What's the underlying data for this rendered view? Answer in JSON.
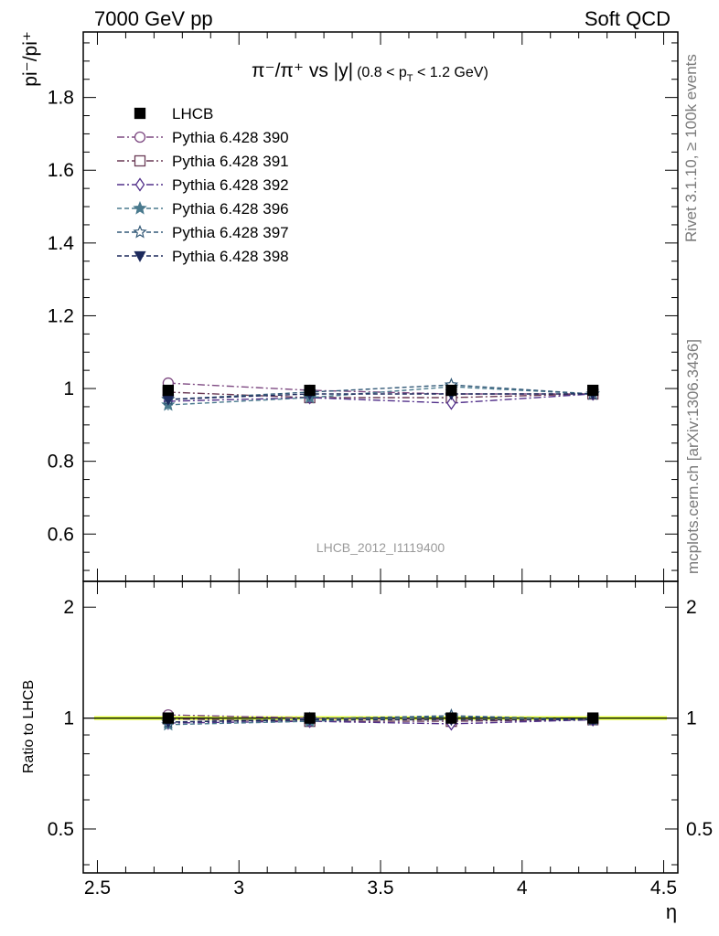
{
  "header": {
    "left": "7000 GeV pp",
    "right": "Soft QCD"
  },
  "side_labels": {
    "rivet": "Rivet 3.1.10, ≥ 100k events",
    "mcplots": "mcplots.cern.ch [arXiv:1306.3436]"
  },
  "watermark": "LHCB_2012_I1119400",
  "title": {
    "main": "π⁻/π⁺ vs |y|",
    "sub": "(0.8 < p",
    "sub_index": "T",
    "sub_end": " < 1.2 GeV)"
  },
  "ylabel_main": "pi⁻/pi⁺",
  "ylabel_ratio": "Ratio to LHCB",
  "xlabel": "η",
  "chart_data": {
    "type": "scatter",
    "x": [
      2.75,
      3.25,
      3.75,
      4.25
    ],
    "xlim": [
      2.45,
      4.55
    ],
    "ylim_main": [
      0.47,
      1.98
    ],
    "ylim_ratio": [
      0.38,
      2.35
    ],
    "ratio_log_scale": true,
    "x_ticks": [
      2.5,
      3,
      3.5,
      4,
      4.5
    ],
    "x_tick_labels": [
      "2.5",
      "3",
      "3.5",
      "4",
      "4.5"
    ],
    "y_ticks_main": [
      0.6,
      0.8,
      1,
      1.2,
      1.4,
      1.6,
      1.8
    ],
    "y_tick_labels_main": [
      "0.6",
      "0.8",
      "1",
      "1.2",
      "1.4",
      "1.6",
      "1.8"
    ],
    "y_ticks_ratio": [
      0.5,
      1,
      2
    ],
    "y_tick_labels_ratio": [
      "0.5",
      "1",
      "2"
    ],
    "legend_position": "top-left",
    "series": [
      {
        "name": "LHCB",
        "marker": "filled-square",
        "color": "#000000",
        "dash": "",
        "values": [
          0.995,
          0.995,
          0.995,
          0.995
        ],
        "err": [
          0.012,
          0.012,
          0.012,
          0.012
        ]
      },
      {
        "name": "Pythia 6.428 390",
        "marker": "open-circle",
        "color": "#7e4a82",
        "dash": "8,3,2,3",
        "values": [
          1.015,
          0.995,
          0.985,
          0.985
        ],
        "err": [
          0.015,
          0.013,
          0.014,
          0.013
        ]
      },
      {
        "name": "Pythia 6.428 391",
        "marker": "open-square",
        "color": "#6a3a55",
        "dash": "8,3,2,3",
        "values": [
          0.99,
          0.975,
          0.975,
          0.985
        ],
        "err": [
          0.015,
          0.013,
          0.014,
          0.013
        ]
      },
      {
        "name": "Pythia 6.428 392",
        "marker": "open-diamond",
        "color": "#52308a",
        "dash": "8,3,2,3",
        "values": [
          0.965,
          0.975,
          0.96,
          0.985
        ],
        "err": [
          0.015,
          0.013,
          0.015,
          0.013
        ]
      },
      {
        "name": "Pythia 6.428 396",
        "marker": "filled-star",
        "color": "#4a7a8e",
        "dash": "5,3",
        "values": [
          0.955,
          0.975,
          1.005,
          0.985
        ],
        "err": [
          0.015,
          0.013,
          0.015,
          0.013
        ]
      },
      {
        "name": "Pythia 6.428 397",
        "marker": "open-star",
        "color": "#345a78",
        "dash": "5,3",
        "values": [
          0.97,
          0.99,
          1.01,
          0.985
        ],
        "err": [
          0.015,
          0.013,
          0.015,
          0.013
        ]
      },
      {
        "name": "Pythia 6.428 398",
        "marker": "filled-triangle-down",
        "color": "#1d2a5c",
        "dash": "5,3",
        "values": [
          0.97,
          0.985,
          0.985,
          0.985
        ],
        "err": [
          0.015,
          0.013,
          0.014,
          0.013
        ]
      }
    ],
    "ratio_band_color": "#e8ff3a",
    "ratio_band_inner_color": "#8fe07a"
  }
}
